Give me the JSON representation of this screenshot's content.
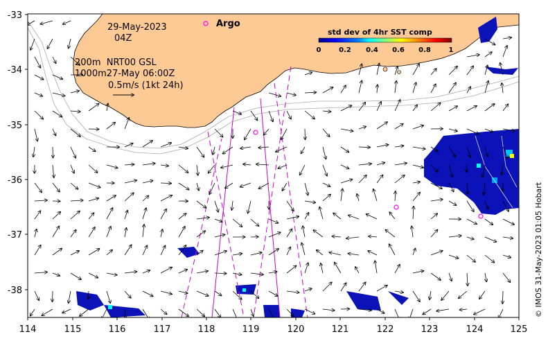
{
  "info": {
    "date": "29-May-2023",
    "hour": "04Z",
    "depth_line": "200m  NRT00 GSL",
    "contour_line": "1000m27-May 06:00Z",
    "scale_label": "0.5m/s (1kt 24h)"
  },
  "legend": {
    "argo_label": "Argo",
    "colorbar_title": "std dev of 4hr SST comp",
    "colorbar_ticks": [
      "0",
      "0.2",
      "0.4",
      "0.6",
      "0.8",
      "1"
    ],
    "colors": [
      "#00007f",
      "#0000ff",
      "#0080ff",
      "#00ffff",
      "#80ff80",
      "#ffff00",
      "#ff8000",
      "#ff0000",
      "#7f0000"
    ]
  },
  "axes": {
    "x_ticks": [
      "114",
      "115",
      "116",
      "117",
      "118",
      "119",
      "120",
      "121",
      "122",
      "123",
      "124",
      "125"
    ],
    "y_ticks": [
      "-33",
      "-34",
      "-35",
      "-36",
      "-37",
      "-38"
    ]
  },
  "credit": "© IMOS 31-May-2023 01:05 Hobart",
  "colors": {
    "land": "#fdca96",
    "argo": "#ff00ff",
    "track": "#cc00cc",
    "contour": "#aaaaaa"
  }
}
